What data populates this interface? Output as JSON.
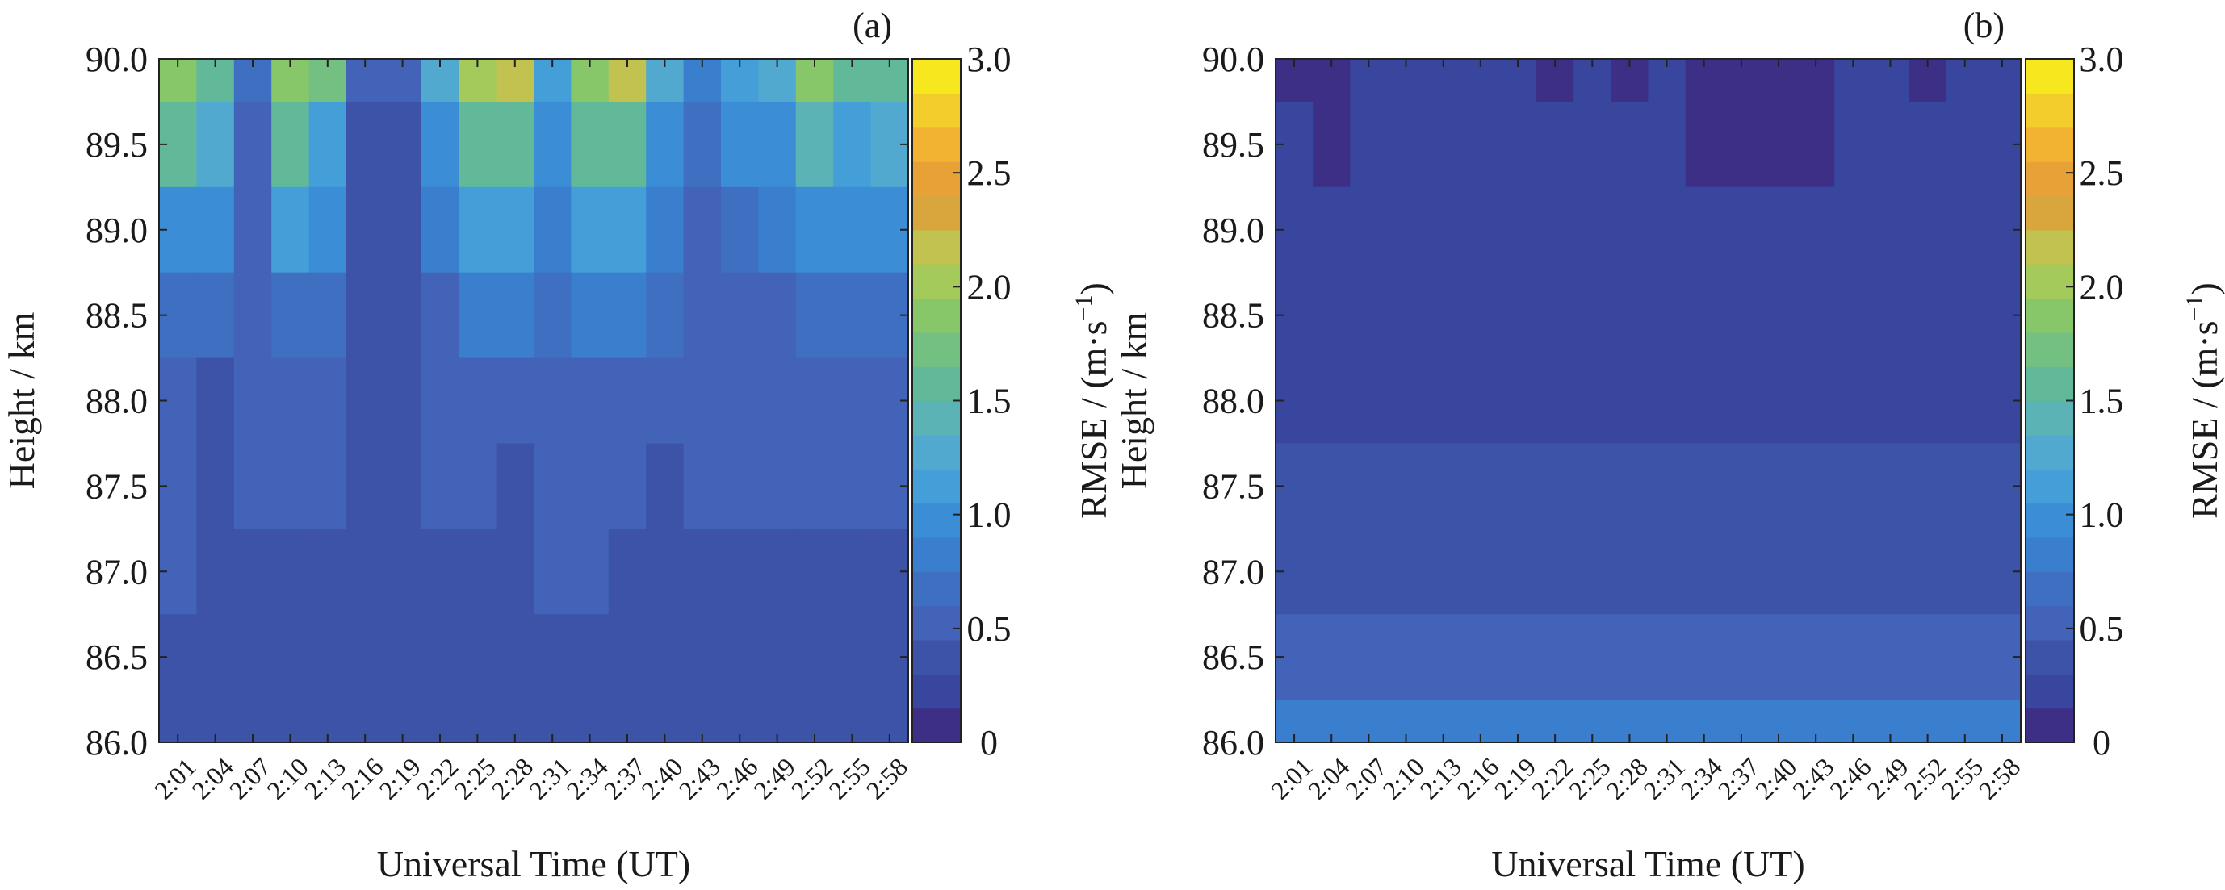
{
  "chart_data": [
    {
      "type": "heatmap",
      "panel_label": "(a)",
      "xlabel": "Universal Time (UT)",
      "ylabel": "Height / km",
      "x_ticks": [
        "2:01",
        "2:04",
        "2:07",
        "2:10",
        "2:13",
        "2:16",
        "2:19",
        "2:22",
        "2:25",
        "2:28",
        "2:31",
        "2:34",
        "2:37",
        "2:40",
        "2:43",
        "2:46",
        "2:49",
        "2:52",
        "2:55",
        "2:58"
      ],
      "y_ticks": [
        "86.0",
        "86.5",
        "87.0",
        "87.5",
        "88.0",
        "88.5",
        "89.0",
        "89.5",
        "90.0"
      ],
      "ylim": [
        86.0,
        90.0
      ],
      "colorbar": {
        "label_main": "RMSE / (m·s",
        "label_exp": "−1",
        "label_close": ")",
        "ticks": [
          "0",
          "0.5",
          "1.0",
          "1.5",
          "2.0",
          "2.5",
          "3.0"
        ],
        "range": [
          0,
          3.0
        ],
        "levels": 20,
        "colors": [
          "#3e2f86",
          "#39469e",
          "#3d53a8",
          "#4263b8",
          "#3f6fc1",
          "#3a7fcd",
          "#3b8ed5",
          "#449ed7",
          "#52a9cf",
          "#5bb3b6",
          "#61b99a",
          "#74c082",
          "#88c66a",
          "#a3ca5a",
          "#c1c24f",
          "#d8a63d",
          "#e8a136",
          "#f3b332",
          "#f3cd2b",
          "#f6e71f"
        ]
      },
      "series": [
        {
          "height_km": 90.0,
          "rmse": [
            1.8,
            1.6,
            0.7,
            1.9,
            1.7,
            0.5,
            0.5,
            1.3,
            2.0,
            2.2,
            1.2,
            1.9,
            2.1,
            1.3,
            0.8,
            1.1,
            1.3,
            1.8,
            1.5,
            1.6
          ]
        },
        {
          "height_km": 89.5,
          "rmse": [
            1.5,
            1.3,
            0.6,
            1.6,
            1.2,
            0.4,
            0.4,
            1.0,
            1.6,
            1.6,
            0.9,
            1.6,
            1.6,
            0.9,
            0.7,
            0.9,
            1.0,
            1.4,
            1.2,
            1.3
          ]
        },
        {
          "height_km": 89.0,
          "rmse": [
            1.0,
            1.0,
            0.6,
            1.1,
            0.9,
            0.4,
            0.4,
            0.8,
            1.1,
            1.2,
            0.8,
            1.1,
            1.1,
            0.8,
            0.6,
            0.7,
            0.8,
            1.0,
            1.0,
            1.0
          ]
        },
        {
          "height_km": 88.5,
          "rmse": [
            0.7,
            0.7,
            0.6,
            0.7,
            0.7,
            0.4,
            0.4,
            0.6,
            0.8,
            0.8,
            0.7,
            0.8,
            0.8,
            0.7,
            0.6,
            0.6,
            0.6,
            0.7,
            0.7,
            0.7
          ]
        },
        {
          "height_km": 88.0,
          "rmse": [
            0.6,
            0.4,
            0.6,
            0.6,
            0.6,
            0.4,
            0.4,
            0.6,
            0.6,
            0.6,
            0.6,
            0.6,
            0.6,
            0.6,
            0.6,
            0.6,
            0.6,
            0.6,
            0.6,
            0.6
          ]
        },
        {
          "height_km": 87.5,
          "rmse": [
            0.6,
            0.4,
            0.6,
            0.6,
            0.6,
            0.4,
            0.4,
            0.6,
            0.6,
            0.4,
            0.6,
            0.6,
            0.6,
            0.4,
            0.6,
            0.6,
            0.6,
            0.6,
            0.6,
            0.6
          ]
        },
        {
          "height_km": 87.0,
          "rmse": [
            0.6,
            0.4,
            0.4,
            0.4,
            0.4,
            0.4,
            0.4,
            0.4,
            0.4,
            0.4,
            0.6,
            0.6,
            0.4,
            0.4,
            0.4,
            0.4,
            0.4,
            0.4,
            0.4,
            0.4
          ]
        },
        {
          "height_km": 86.5,
          "rmse": [
            0.4,
            0.4,
            0.4,
            0.4,
            0.4,
            0.4,
            0.4,
            0.4,
            0.4,
            0.4,
            0.4,
            0.4,
            0.4,
            0.4,
            0.4,
            0.4,
            0.4,
            0.4,
            0.4,
            0.4
          ]
        },
        {
          "height_km": 86.0,
          "rmse": [
            0.4,
            0.4,
            0.4,
            0.4,
            0.4,
            0.4,
            0.4,
            0.4,
            0.4,
            0.4,
            0.4,
            0.4,
            0.4,
            0.4,
            0.4,
            0.4,
            0.4,
            0.4,
            0.4,
            0.4
          ]
        }
      ]
    },
    {
      "type": "heatmap",
      "panel_label": "(b)",
      "xlabel": "Universal Time (UT)",
      "ylabel": "Height / km",
      "x_ticks": [
        "2:01",
        "2:04",
        "2:07",
        "2:10",
        "2:13",
        "2:16",
        "2:19",
        "2:22",
        "2:25",
        "2:28",
        "2:31",
        "2:34",
        "2:37",
        "2:40",
        "2:43",
        "2:46",
        "2:49",
        "2:52",
        "2:55",
        "2:58"
      ],
      "y_ticks": [
        "86.0",
        "86.5",
        "87.0",
        "87.5",
        "88.0",
        "88.5",
        "89.0",
        "89.5",
        "90.0"
      ],
      "ylim": [
        86.0,
        90.0
      ],
      "colorbar": {
        "label_main": "RMSE / (m·s",
        "label_exp": "−1",
        "label_close": ")",
        "ticks": [
          "0",
          "0.5",
          "1.0",
          "1.5",
          "2.0",
          "2.5",
          "3.0"
        ],
        "range": [
          0,
          3.0
        ],
        "levels": 20,
        "colors": [
          "#3e2f86",
          "#39469e",
          "#3d53a8",
          "#4263b8",
          "#3f6fc1",
          "#3a7fcd",
          "#3b8ed5",
          "#449ed7",
          "#52a9cf",
          "#5bb3b6",
          "#61b99a",
          "#74c082",
          "#88c66a",
          "#a3ca5a",
          "#c1c24f",
          "#d8a63d",
          "#e8a136",
          "#f3b332",
          "#f3cd2b",
          "#f6e71f"
        ]
      },
      "series": [
        {
          "height_km": 90.0,
          "rmse": [
            0.1,
            0.1,
            0.2,
            0.2,
            0.2,
            0.2,
            0.2,
            0.1,
            0.2,
            0.1,
            0.2,
            0.1,
            0.1,
            0.1,
            0.1,
            0.2,
            0.2,
            0.1,
            0.2,
            0.2
          ]
        },
        {
          "height_km": 89.5,
          "rmse": [
            0.2,
            0.1,
            0.2,
            0.2,
            0.2,
            0.2,
            0.2,
            0.2,
            0.2,
            0.2,
            0.2,
            0.1,
            0.1,
            0.1,
            0.1,
            0.2,
            0.2,
            0.2,
            0.2,
            0.2
          ]
        },
        {
          "height_km": 89.0,
          "rmse": [
            0.2,
            0.2,
            0.2,
            0.2,
            0.2,
            0.2,
            0.2,
            0.2,
            0.2,
            0.2,
            0.2,
            0.2,
            0.2,
            0.2,
            0.2,
            0.2,
            0.2,
            0.2,
            0.2,
            0.2
          ]
        },
        {
          "height_km": 88.5,
          "rmse": [
            0.2,
            0.2,
            0.2,
            0.2,
            0.2,
            0.2,
            0.2,
            0.2,
            0.2,
            0.2,
            0.2,
            0.2,
            0.2,
            0.2,
            0.2,
            0.2,
            0.2,
            0.2,
            0.2,
            0.2
          ]
        },
        {
          "height_km": 88.0,
          "rmse": [
            0.3,
            0.3,
            0.3,
            0.3,
            0.3,
            0.3,
            0.3,
            0.3,
            0.3,
            0.3,
            0.3,
            0.3,
            0.3,
            0.3,
            0.3,
            0.3,
            0.3,
            0.3,
            0.3,
            0.3
          ]
        },
        {
          "height_km": 87.5,
          "rmse": [
            0.4,
            0.4,
            0.4,
            0.4,
            0.4,
            0.4,
            0.4,
            0.4,
            0.4,
            0.4,
            0.4,
            0.4,
            0.4,
            0.4,
            0.4,
            0.4,
            0.4,
            0.4,
            0.4,
            0.4
          ]
        },
        {
          "height_km": 87.0,
          "rmse": [
            0.4,
            0.4,
            0.4,
            0.4,
            0.4,
            0.4,
            0.4,
            0.4,
            0.4,
            0.4,
            0.4,
            0.4,
            0.4,
            0.4,
            0.4,
            0.4,
            0.4,
            0.4,
            0.4,
            0.4
          ]
        },
        {
          "height_km": 86.5,
          "rmse": [
            0.5,
            0.5,
            0.5,
            0.5,
            0.5,
            0.5,
            0.5,
            0.5,
            0.5,
            0.5,
            0.5,
            0.5,
            0.5,
            0.5,
            0.5,
            0.5,
            0.5,
            0.5,
            0.5,
            0.5
          ]
        },
        {
          "height_km": 86.0,
          "rmse": [
            0.8,
            0.8,
            0.8,
            0.8,
            0.8,
            0.8,
            0.8,
            0.8,
            0.8,
            0.8,
            0.8,
            0.8,
            0.8,
            0.8,
            0.8,
            0.8,
            0.8,
            0.8,
            0.8,
            0.8
          ]
        }
      ]
    }
  ]
}
